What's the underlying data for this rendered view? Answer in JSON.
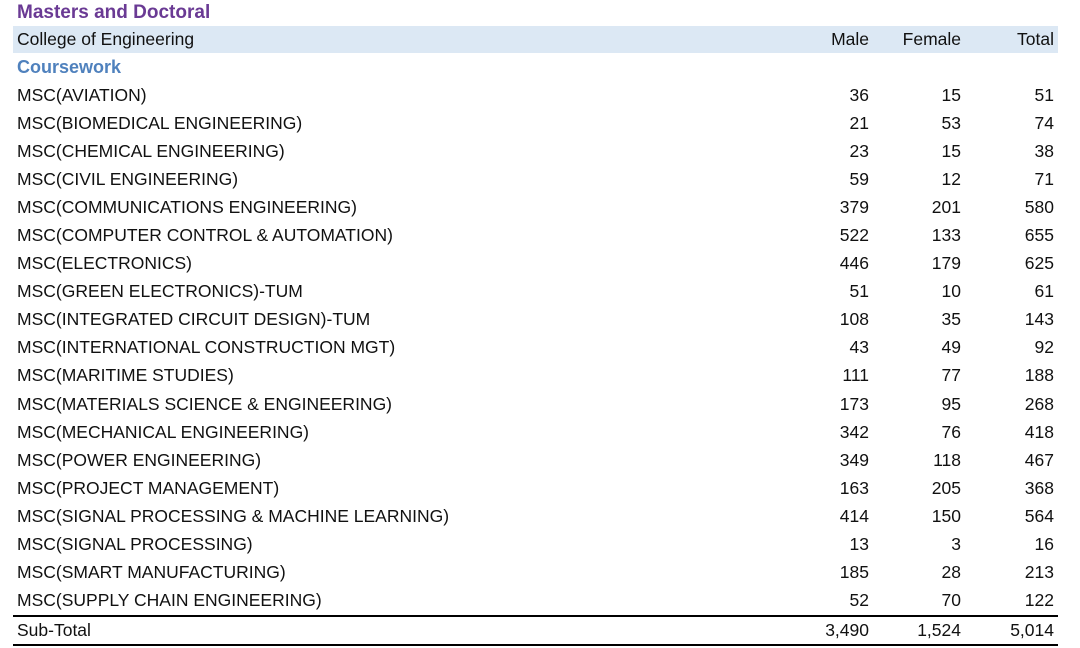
{
  "title": "Masters and Doctoral",
  "header": {
    "college": "College of Engineering",
    "male": "Male",
    "female": "Female",
    "total": "Total"
  },
  "section": "Coursework",
  "rows": [
    {
      "program": "MSC(AVIATION)",
      "male": "36",
      "female": "15",
      "total": "51"
    },
    {
      "program": "MSC(BIOMEDICAL ENGINEERING)",
      "male": "21",
      "female": "53",
      "total": "74"
    },
    {
      "program": "MSC(CHEMICAL ENGINEERING)",
      "male": "23",
      "female": "15",
      "total": "38"
    },
    {
      "program": "MSC(CIVIL ENGINEERING)",
      "male": "59",
      "female": "12",
      "total": "71"
    },
    {
      "program": "MSC(COMMUNICATIONS ENGINEERING)",
      "male": "379",
      "female": "201",
      "total": "580"
    },
    {
      "program": "MSC(COMPUTER CONTROL & AUTOMATION)",
      "male": "522",
      "female": "133",
      "total": "655"
    },
    {
      "program": "MSC(ELECTRONICS)",
      "male": "446",
      "female": "179",
      "total": "625"
    },
    {
      "program": "MSC(GREEN ELECTRONICS)-TUM",
      "male": "51",
      "female": "10",
      "total": "61"
    },
    {
      "program": "MSC(INTEGRATED CIRCUIT DESIGN)-TUM",
      "male": "108",
      "female": "35",
      "total": "143"
    },
    {
      "program": "MSC(INTERNATIONAL CONSTRUCTION MGT)",
      "male": "43",
      "female": "49",
      "total": "92"
    },
    {
      "program": "MSC(MARITIME STUDIES)",
      "male": "111",
      "female": "77",
      "total": "188"
    },
    {
      "program": "MSC(MATERIALS SCIENCE & ENGINEERING)",
      "male": "173",
      "female": "95",
      "total": "268"
    },
    {
      "program": "MSC(MECHANICAL ENGINEERING)",
      "male": "342",
      "female": "76",
      "total": "418"
    },
    {
      "program": "MSC(POWER ENGINEERING)",
      "male": "349",
      "female": "118",
      "total": "467"
    },
    {
      "program": "MSC(PROJECT MANAGEMENT)",
      "male": "163",
      "female": "205",
      "total": "368"
    },
    {
      "program": "MSC(SIGNAL PROCESSING & MACHINE LEARNING)",
      "male": "414",
      "female": "150",
      "total": "564"
    },
    {
      "program": "MSC(SIGNAL PROCESSING)",
      "male": "13",
      "female": "3",
      "total": "16"
    },
    {
      "program": "MSC(SMART MANUFACTURING)",
      "male": "185",
      "female": "28",
      "total": "213"
    },
    {
      "program": "MSC(SUPPLY CHAIN ENGINEERING)",
      "male": "52",
      "female": "70",
      "total": "122"
    }
  ],
  "subtotal": {
    "label": "Sub-Total",
    "male": "3,490",
    "female": "1,524",
    "total": "5,014"
  },
  "colors": {
    "title": "#6a3a94",
    "section": "#4f81bd",
    "header_bg": "#dce8f4"
  }
}
